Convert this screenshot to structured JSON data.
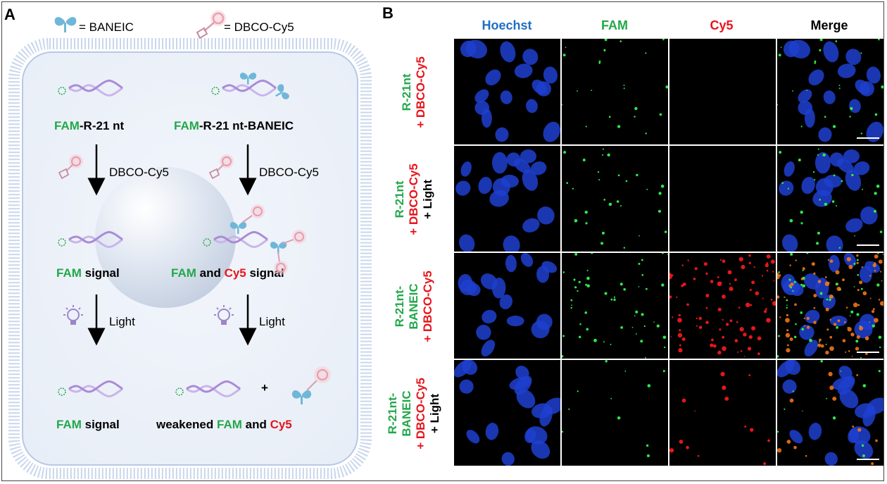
{
  "panel_a": {
    "letter": "A",
    "legend": {
      "baneic": "= BANEIC",
      "dbco": "= DBCO-Cy5"
    },
    "left": {
      "name_fam": "FAM",
      "name_rest": "-R-21 nt",
      "step1": "DBCO-Cy5",
      "signal_fam": "FAM",
      "signal_rest": " signal",
      "step2": "Light",
      "final_fam": "FAM",
      "final_rest": " signal"
    },
    "right": {
      "name_fam": "FAM",
      "name_rest": "-R-21 nt-BANEIC",
      "step1": "DBCO-Cy5",
      "signal_fam": "FAM",
      "signal_mid": " and ",
      "signal_cy5": "Cy5",
      "signal_rest": " signal",
      "step2": "Light",
      "plus": "+",
      "final_pre": "weakened ",
      "final_fam": "FAM",
      "final_mid": " and ",
      "final_cy5": "Cy5"
    }
  },
  "panel_b": {
    "letter": "B",
    "columns": [
      {
        "label": "Hoechst",
        "color": "#1f6fc5"
      },
      {
        "label": "FAM",
        "color": "#22a84a"
      },
      {
        "label": "Cy5",
        "color": "#e8141b"
      },
      {
        "label": "Merge",
        "color": "#000000"
      }
    ],
    "rows": [
      {
        "lines": [
          {
            "text": "R-21nt",
            "color": "#22a84a"
          },
          {
            "text": "+ DBCO-Cy5",
            "color": "#e8141b"
          }
        ]
      },
      {
        "lines": [
          {
            "text": "R-21nt",
            "color": "#22a84a"
          },
          {
            "text": "+ DBCO-Cy5",
            "color": "#e8141b"
          },
          {
            "text": "+ Light",
            "color": "#000000"
          }
        ]
      },
      {
        "lines": [
          {
            "text": "R-21nt-",
            "color": "#22a84a"
          },
          {
            "text": "BANEIC",
            "color": "#22a84a"
          },
          {
            "text": "+ DBCO-Cy5",
            "color": "#e8141b"
          }
        ]
      },
      {
        "lines": [
          {
            "text": "R-21nt-",
            "color": "#22a84a"
          },
          {
            "text": "BANEIC",
            "color": "#22a84a"
          },
          {
            "text": "+ DBCO-Cy5",
            "color": "#e8141b"
          },
          {
            "text": "+ Light",
            "color": "#000000"
          }
        ]
      }
    ],
    "intensity": {
      "fam": [
        0.4,
        0.5,
        0.9,
        0.2
      ],
      "cy5": [
        0.0,
        0.0,
        1.0,
        0.15
      ]
    }
  },
  "colors": {
    "fam": "#22a84a",
    "cy5": "#e8141b",
    "hoechst": "#1f6fc5",
    "dna": "#a98bd6",
    "membrane": "#b8c8e6",
    "baneic": "#6fb7d8",
    "dbco": "#e07a8c"
  }
}
